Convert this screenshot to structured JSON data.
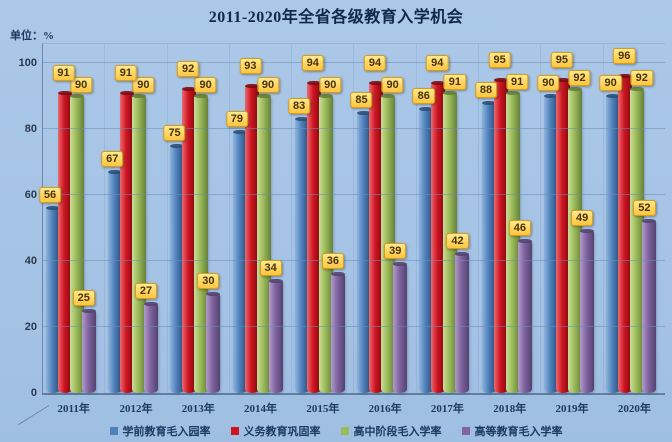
{
  "title": "2011-2020年全省各级教育入学机会",
  "unit_label": "单位：%",
  "chart_data": {
    "type": "bar",
    "title": "2011-2020年全省各级教育入学机会",
    "unit": "%",
    "categories": [
      "2011年",
      "2012年",
      "2013年",
      "2014年",
      "2015年",
      "2016年",
      "2017年",
      "2018年",
      "2019年",
      "2020年"
    ],
    "series": [
      {
        "name": "学前教育毛入园率",
        "values": [
          56,
          67,
          75,
          79,
          83,
          85,
          86,
          88,
          90,
          90
        ],
        "colors": {
          "light": "#8fb4dd",
          "base": "#4f81bd",
          "dark": "#2c4e77"
        }
      },
      {
        "name": "义务教育巩固率",
        "values": [
          91,
          91,
          92,
          93,
          94,
          94,
          94,
          95,
          95,
          96
        ],
        "colors": {
          "light": "#ea6b70",
          "base": "#cf1420",
          "dark": "#7c0a10"
        }
      },
      {
        "name": "高中阶段毛入学率",
        "values": [
          90,
          90,
          90,
          90,
          90,
          90,
          91,
          91,
          92,
          92
        ],
        "colors": {
          "light": "#cadd98",
          "base": "#9bbb59",
          "dark": "#66803a"
        }
      },
      {
        "name": "高等教育毛入学率",
        "values": [
          25,
          27,
          30,
          34,
          36,
          39,
          42,
          46,
          49,
          52
        ],
        "colors": {
          "light": "#b29cc9",
          "base": "#8064a2",
          "dark": "#54426e"
        }
      }
    ],
    "ylim": [
      0,
      100
    ],
    "yticks": [
      0,
      20,
      40,
      60,
      80,
      100
    ],
    "xlabel": "",
    "ylabel": "",
    "grid": true,
    "legend_position": "bottom",
    "value_labels": true,
    "label_style": {
      "background": "#fdc53f",
      "text_color": "#4a3304"
    },
    "background_color": "#a7c5e6",
    "title_color": "#10294a"
  }
}
